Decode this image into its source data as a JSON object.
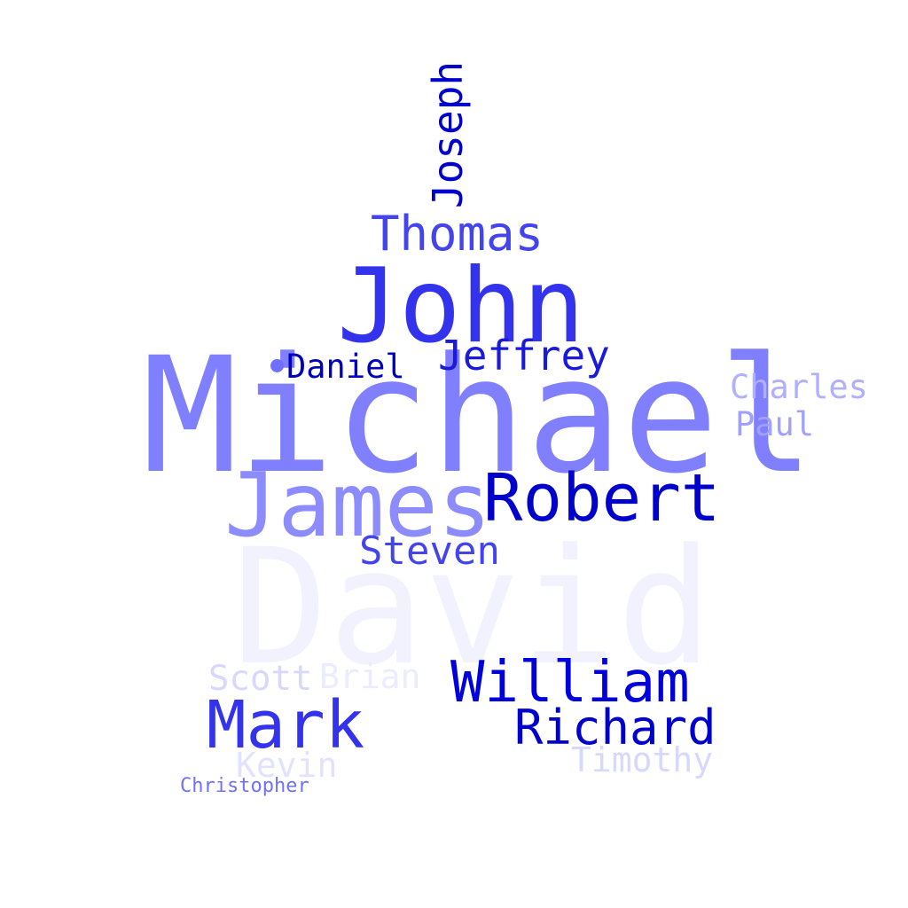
{
  "words": [
    {
      "text": "Michael",
      "color": "#8080ff"
    },
    {
      "text": "David",
      "color": "#f2f2ff"
    },
    {
      "text": "John",
      "color": "#3333ee"
    },
    {
      "text": "James",
      "color": "#8c8cff"
    },
    {
      "text": "Robert",
      "color": "#0000cc"
    },
    {
      "text": "William",
      "color": "#0000dd"
    },
    {
      "text": "Mark",
      "color": "#3333ee"
    },
    {
      "text": "Richard",
      "color": "#0000cc"
    },
    {
      "text": "Thomas",
      "color": "#4444ee"
    },
    {
      "text": "Joseph",
      "color": "#0000cc"
    },
    {
      "text": "Jeffrey",
      "color": "#1a1add"
    },
    {
      "text": "Steven",
      "color": "#4444ee"
    },
    {
      "text": "Daniel",
      "color": "#0000bb"
    },
    {
      "text": "Charles",
      "color": "#b0b0ff"
    },
    {
      "text": "Paul",
      "color": "#a0a0ff"
    },
    {
      "text": "Scott",
      "color": "#d8d8ff"
    },
    {
      "text": "Brian",
      "color": "#ececff"
    },
    {
      "text": "Kevin",
      "color": "#e2e2ff"
    },
    {
      "text": "Timothy",
      "color": "#d8d8ff"
    },
    {
      "text": "Christopher",
      "color": "#7070ff"
    }
  ],
  "dot_color": "#7070ff"
}
